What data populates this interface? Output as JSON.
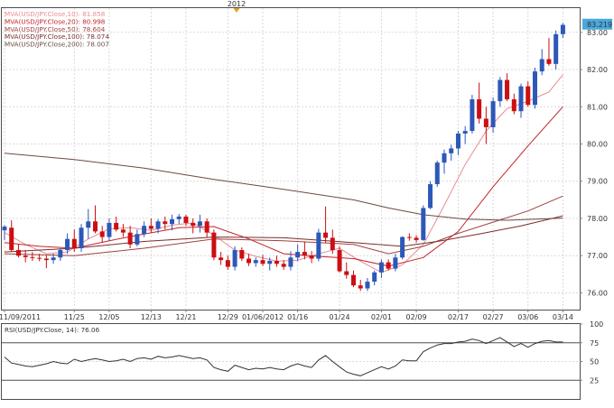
{
  "top_label": "2012",
  "colors": {
    "up": "#2c58b8",
    "down": "#cc0f12",
    "price_tag_bg": "#4aa8dc",
    "mva10": "#e98c91",
    "mva20": "#c2242a",
    "mva50": "#a04040",
    "mva100": "#7a2b2b",
    "mva200": "#6a4a40",
    "rsi": "#333333",
    "panel_border": "#4d4d4d"
  },
  "chart_data": [
    {
      "type": "candlestick",
      "title": "",
      "legend": [
        {
          "label": "MVA(USD/JPY.Close,10)",
          "value": "81.858",
          "color": "#e98c91"
        },
        {
          "label": "MVA(USD/JPY.Close,20)",
          "value": "80.998",
          "color": "#c2242a"
        },
        {
          "label": "MVA(USD/JPY.Close,50)",
          "value": "78.604",
          "color": "#a04040"
        },
        {
          "label": "MVA(USD/JPY.Close,100)",
          "value": "78.074",
          "color": "#7a2b2b"
        },
        {
          "label": "MVA(USD/JPY.Close,200)",
          "value": "78.007",
          "color": "#6a4a40"
        }
      ],
      "last_price": "83.219",
      "ylim": [
        75.55,
        83.65
      ],
      "yticks": [
        "76.00",
        "77.00",
        "78.00",
        "79.00",
        "80.00",
        "81.00",
        "82.00",
        "83.00"
      ],
      "xticks": [
        "11/09/2011",
        "11/25",
        "12/05",
        "12/13",
        "12/21",
        "12/29",
        "01/06/2012",
        "01/16",
        "01/24",
        "02/01",
        "02/09",
        "02/17",
        "02/27",
        "03/06",
        "03/14"
      ],
      "candles": [
        {
          "o": 77.68,
          "h": 77.82,
          "l": 77.42,
          "c": 77.78
        },
        {
          "o": 77.75,
          "h": 77.95,
          "l": 77.1,
          "c": 77.15
        },
        {
          "o": 77.15,
          "h": 77.3,
          "l": 76.95,
          "c": 77.0
        },
        {
          "o": 77.0,
          "h": 77.15,
          "l": 76.82,
          "c": 76.96
        },
        {
          "o": 76.96,
          "h": 77.1,
          "l": 76.86,
          "c": 76.94
        },
        {
          "o": 76.94,
          "h": 77.05,
          "l": 76.85,
          "c": 76.92
        },
        {
          "o": 76.92,
          "h": 77.0,
          "l": 76.66,
          "c": 76.88
        },
        {
          "o": 76.88,
          "h": 77.05,
          "l": 76.78,
          "c": 76.95
        },
        {
          "o": 76.95,
          "h": 77.2,
          "l": 76.86,
          "c": 77.15
        },
        {
          "o": 77.15,
          "h": 77.6,
          "l": 77.05,
          "c": 77.45
        },
        {
          "o": 77.45,
          "h": 77.7,
          "l": 77.1,
          "c": 77.2
        },
        {
          "o": 77.2,
          "h": 77.85,
          "l": 77.1,
          "c": 77.75
        },
        {
          "o": 77.75,
          "h": 78.25,
          "l": 77.45,
          "c": 77.92
        },
        {
          "o": 77.92,
          "h": 78.35,
          "l": 77.6,
          "c": 77.65
        },
        {
          "o": 77.65,
          "h": 77.8,
          "l": 77.35,
          "c": 77.5
        },
        {
          "o": 77.5,
          "h": 78.0,
          "l": 77.4,
          "c": 77.88
        },
        {
          "o": 77.88,
          "h": 78.05,
          "l": 77.65,
          "c": 77.7
        },
        {
          "o": 77.7,
          "h": 77.85,
          "l": 77.5,
          "c": 77.62
        },
        {
          "o": 77.62,
          "h": 77.8,
          "l": 77.2,
          "c": 77.3
        },
        {
          "o": 77.3,
          "h": 77.7,
          "l": 77.25,
          "c": 77.58
        },
        {
          "o": 77.58,
          "h": 77.92,
          "l": 77.5,
          "c": 77.8
        },
        {
          "o": 77.8,
          "h": 78.0,
          "l": 77.62,
          "c": 77.72
        },
        {
          "o": 77.72,
          "h": 77.98,
          "l": 77.6,
          "c": 77.92
        },
        {
          "o": 77.92,
          "h": 78.05,
          "l": 77.7,
          "c": 77.85
        },
        {
          "o": 77.85,
          "h": 78.1,
          "l": 77.68,
          "c": 77.98
        },
        {
          "o": 77.98,
          "h": 78.12,
          "l": 77.85,
          "c": 78.05
        },
        {
          "o": 78.05,
          "h": 78.1,
          "l": 77.8,
          "c": 77.88
        },
        {
          "o": 77.88,
          "h": 78.0,
          "l": 77.6,
          "c": 77.8
        },
        {
          "o": 77.8,
          "h": 78.1,
          "l": 77.62,
          "c": 77.92
        },
        {
          "o": 77.92,
          "h": 78.0,
          "l": 77.5,
          "c": 77.62
        },
        {
          "o": 77.62,
          "h": 77.7,
          "l": 76.88,
          "c": 76.95
        },
        {
          "o": 76.95,
          "h": 77.1,
          "l": 76.75,
          "c": 76.88
        },
        {
          "o": 76.88,
          "h": 77.0,
          "l": 76.62,
          "c": 76.7
        },
        {
          "o": 76.7,
          "h": 77.25,
          "l": 76.6,
          "c": 77.15
        },
        {
          "o": 77.15,
          "h": 77.22,
          "l": 76.86,
          "c": 76.92
        },
        {
          "o": 76.92,
          "h": 77.05,
          "l": 76.72,
          "c": 76.8
        },
        {
          "o": 76.8,
          "h": 76.95,
          "l": 76.7,
          "c": 76.88
        },
        {
          "o": 76.88,
          "h": 77.02,
          "l": 76.72,
          "c": 76.78
        },
        {
          "o": 76.78,
          "h": 76.95,
          "l": 76.6,
          "c": 76.86
        },
        {
          "o": 76.86,
          "h": 77.0,
          "l": 76.7,
          "c": 76.78
        },
        {
          "o": 76.78,
          "h": 76.88,
          "l": 76.62,
          "c": 76.7
        },
        {
          "o": 76.7,
          "h": 77.12,
          "l": 76.6,
          "c": 76.95
        },
        {
          "o": 76.95,
          "h": 77.3,
          "l": 76.85,
          "c": 77.1
        },
        {
          "o": 77.1,
          "h": 77.38,
          "l": 76.9,
          "c": 77.0
        },
        {
          "o": 77.0,
          "h": 77.12,
          "l": 76.8,
          "c": 76.92
        },
        {
          "o": 76.92,
          "h": 77.72,
          "l": 76.85,
          "c": 77.62
        },
        {
          "o": 77.62,
          "h": 78.32,
          "l": 77.35,
          "c": 77.48
        },
        {
          "o": 77.48,
          "h": 77.7,
          "l": 77.05,
          "c": 77.15
        },
        {
          "o": 77.15,
          "h": 77.25,
          "l": 76.55,
          "c": 76.58
        },
        {
          "o": 76.58,
          "h": 76.82,
          "l": 76.38,
          "c": 76.48
        },
        {
          "o": 76.48,
          "h": 76.6,
          "l": 76.15,
          "c": 76.2
        },
        {
          "o": 76.2,
          "h": 76.35,
          "l": 76.05,
          "c": 76.12
        },
        {
          "o": 76.12,
          "h": 76.4,
          "l": 76.05,
          "c": 76.3
        },
        {
          "o": 76.3,
          "h": 76.6,
          "l": 76.2,
          "c": 76.55
        },
        {
          "o": 76.55,
          "h": 76.9,
          "l": 76.4,
          "c": 76.82
        },
        {
          "o": 76.82,
          "h": 76.9,
          "l": 76.6,
          "c": 76.65
        },
        {
          "o": 76.65,
          "h": 77.05,
          "l": 76.58,
          "c": 76.95
        },
        {
          "o": 76.95,
          "h": 77.52,
          "l": 76.9,
          "c": 77.5
        },
        {
          "o": 77.5,
          "h": 77.6,
          "l": 77.4,
          "c": 77.48
        },
        {
          "o": 77.48,
          "h": 77.55,
          "l": 77.35,
          "c": 77.42
        },
        {
          "o": 77.42,
          "h": 78.35,
          "l": 77.4,
          "c": 78.28
        },
        {
          "o": 78.28,
          "h": 79.0,
          "l": 78.25,
          "c": 78.92
        },
        {
          "o": 78.92,
          "h": 79.55,
          "l": 78.85,
          "c": 79.5
        },
        {
          "o": 79.5,
          "h": 79.85,
          "l": 79.2,
          "c": 79.75
        },
        {
          "o": 79.75,
          "h": 79.98,
          "l": 79.55,
          "c": 79.88
        },
        {
          "o": 79.88,
          "h": 80.35,
          "l": 79.7,
          "c": 80.28
        },
        {
          "o": 80.28,
          "h": 80.48,
          "l": 80.0,
          "c": 80.35
        },
        {
          "o": 80.35,
          "h": 81.32,
          "l": 80.28,
          "c": 81.2
        },
        {
          "o": 81.2,
          "h": 81.65,
          "l": 80.55,
          "c": 80.68
        },
        {
          "o": 80.68,
          "h": 81.0,
          "l": 80.0,
          "c": 80.45
        },
        {
          "o": 80.45,
          "h": 81.25,
          "l": 80.3,
          "c": 81.15
        },
        {
          "o": 81.15,
          "h": 81.8,
          "l": 81.0,
          "c": 81.72
        },
        {
          "o": 81.72,
          "h": 81.9,
          "l": 81.15,
          "c": 81.2
        },
        {
          "o": 81.2,
          "h": 81.35,
          "l": 80.8,
          "c": 80.88
        },
        {
          "o": 80.88,
          "h": 81.62,
          "l": 80.7,
          "c": 81.55
        },
        {
          "o": 81.55,
          "h": 81.68,
          "l": 81.0,
          "c": 81.05
        },
        {
          "o": 81.05,
          "h": 82.05,
          "l": 80.95,
          "c": 81.95
        },
        {
          "o": 81.95,
          "h": 82.55,
          "l": 81.85,
          "c": 82.28
        },
        {
          "o": 82.28,
          "h": 82.85,
          "l": 82.1,
          "c": 82.15
        },
        {
          "o": 82.15,
          "h": 83.05,
          "l": 82.0,
          "c": 82.95
        },
        {
          "o": 82.95,
          "h": 83.25,
          "l": 82.85,
          "c": 83.2
        }
      ],
      "mva": [
        {
          "label": "MVA(USD/JPY.Close,10)",
          "color": "#e98c91",
          "points": [
            [
              0,
              77.62
            ],
            [
              3,
              77.3
            ],
            [
              6,
              77.05
            ],
            [
              9,
              77.1
            ],
            [
              12,
              77.45
            ],
            [
              15,
              77.72
            ],
            [
              18,
              77.75
            ],
            [
              21,
              77.68
            ],
            [
              24,
              77.82
            ],
            [
              27,
              77.88
            ],
            [
              30,
              77.55
            ],
            [
              33,
              77.15
            ],
            [
              36,
              76.98
            ],
            [
              39,
              76.85
            ],
            [
              42,
              76.88
            ],
            [
              45,
              77.05
            ],
            [
              48,
              77.2
            ],
            [
              51,
              76.85
            ],
            [
              54,
              76.55
            ],
            [
              57,
              76.75
            ],
            [
              60,
              77.3
            ],
            [
              63,
              78.35
            ],
            [
              66,
              79.45
            ],
            [
              69,
              80.35
            ],
            [
              72,
              80.95
            ],
            [
              75,
              81.15
            ],
            [
              78,
              81.4
            ],
            [
              80,
              81.86
            ]
          ]
        },
        {
          "label": "MVA(USD/JPY.Close,20)",
          "color": "#c2242a",
          "points": [
            [
              0,
              77.35
            ],
            [
              5,
              77.25
            ],
            [
              10,
              77.2
            ],
            [
              15,
              77.4
            ],
            [
              20,
              77.58
            ],
            [
              25,
              77.75
            ],
            [
              30,
              77.78
            ],
            [
              35,
              77.45
            ],
            [
              40,
              77.05
            ],
            [
              45,
              76.98
            ],
            [
              50,
              76.92
            ],
            [
              55,
              76.72
            ],
            [
              60,
              76.95
            ],
            [
              65,
              77.65
            ],
            [
              70,
              78.85
            ],
            [
              75,
              79.95
            ],
            [
              80,
              81.0
            ]
          ]
        },
        {
          "label": "MVA(USD/JPY.Close,50)",
          "color": "#a04040",
          "points": [
            [
              0,
              77.05
            ],
            [
              10,
              77.0
            ],
            [
              20,
              77.2
            ],
            [
              30,
              77.45
            ],
            [
              40,
              77.4
            ],
            [
              50,
              77.3
            ],
            [
              55,
              77.05
            ],
            [
              60,
              77.25
            ],
            [
              65,
              77.6
            ],
            [
              70,
              77.9
            ],
            [
              75,
              78.2
            ],
            [
              80,
              78.6
            ]
          ]
        },
        {
          "label": "MVA(USD/JPY.Close,100)",
          "color": "#7a2b2b",
          "points": [
            [
              0,
              77.1
            ],
            [
              10,
              77.2
            ],
            [
              20,
              77.38
            ],
            [
              30,
              77.5
            ],
            [
              40,
              77.48
            ],
            [
              50,
              77.35
            ],
            [
              57,
              77.25
            ],
            [
              62,
              77.38
            ],
            [
              68,
              77.58
            ],
            [
              74,
              77.8
            ],
            [
              80,
              78.07
            ]
          ]
        },
        {
          "label": "MVA(USD/JPY.Close,200)",
          "color": "#6a4a40",
          "points": [
            [
              0,
              79.75
            ],
            [
              10,
              79.58
            ],
            [
              20,
              79.35
            ],
            [
              30,
              79.05
            ],
            [
              40,
              78.78
            ],
            [
              50,
              78.5
            ],
            [
              55,
              78.28
            ],
            [
              60,
              78.1
            ],
            [
              66,
              77.98
            ],
            [
              72,
              77.95
            ],
            [
              80,
              78.01
            ]
          ]
        }
      ]
    },
    {
      "type": "line",
      "title": "",
      "legend": {
        "label": "RSI(USD/JPY.Close, 14)",
        "value": "76.06"
      },
      "ylim": [
        0,
        100
      ],
      "yticks": [
        "25",
        "50",
        "75",
        "100"
      ],
      "values": [
        56,
        48,
        46,
        44,
        43,
        45,
        47,
        50,
        48,
        47,
        53,
        50,
        52,
        54,
        52,
        50,
        51,
        53,
        50,
        54,
        55,
        53,
        57,
        55,
        56,
        58,
        56,
        54,
        55,
        52,
        42,
        39,
        37,
        45,
        42,
        39,
        41,
        40,
        42,
        40,
        39,
        44,
        47,
        44,
        42,
        52,
        58,
        50,
        43,
        36,
        33,
        31,
        35,
        39,
        43,
        40,
        44,
        52,
        51,
        51,
        63,
        68,
        72,
        74,
        74,
        76,
        77,
        80,
        78,
        74,
        78,
        82,
        76,
        70,
        74,
        69,
        74,
        77,
        78,
        76,
        76
      ]
    }
  ]
}
